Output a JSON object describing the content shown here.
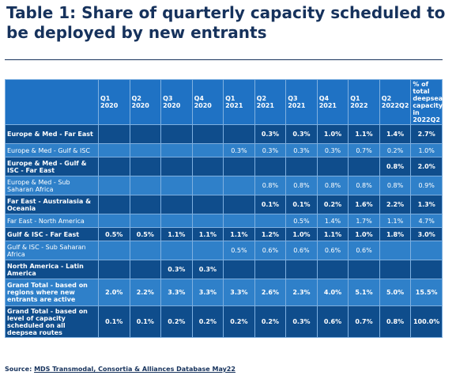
{
  "header": {
    "title": "Table 1: Share of quarterly capacity scheduled to be deployed by new entrants"
  },
  "table": {
    "columns": [
      [
        "Q1",
        "2020"
      ],
      [
        "Q2",
        "2020"
      ],
      [
        "Q3",
        "2020"
      ],
      [
        "Q4",
        "2020"
      ],
      [
        "Q1",
        "2021"
      ],
      [
        "Q2",
        "2021"
      ],
      [
        "Q3",
        "2021"
      ],
      [
        "Q4",
        "2021"
      ],
      [
        "Q1",
        "2022"
      ],
      [
        "Q2",
        "2022Q2"
      ],
      [
        "% of total deepsea capacity in 2022Q2"
      ]
    ],
    "rows": [
      {
        "label": "Europe & Med - Far East",
        "cells": [
          null,
          null,
          null,
          null,
          null,
          "0.3%",
          "0.3%",
          "1.0%",
          "1.1%",
          "1.4%",
          "2.7%"
        ]
      },
      {
        "label": "Europe & Med - Gulf & ISC",
        "cells": [
          null,
          null,
          null,
          null,
          "0.3%",
          "0.3%",
          "0.3%",
          "0.3%",
          "0.7%",
          "0.2%",
          "1.0%"
        ]
      },
      {
        "label": "Europe & Med - Gulf & ISC - Far East",
        "cells": [
          null,
          null,
          null,
          null,
          null,
          null,
          null,
          null,
          null,
          "0.8%",
          "2.0%"
        ]
      },
      {
        "label": "Europe & Med - Sub Saharan Africa",
        "cells": [
          null,
          null,
          null,
          null,
          null,
          "0.8%",
          "0.8%",
          "0.8%",
          "0.8%",
          "0.8%",
          "0.9%"
        ]
      },
      {
        "label": "Far East - Australasia & Oceania",
        "cells": [
          null,
          null,
          null,
          null,
          null,
          "0.1%",
          "0.1%",
          "0.2%",
          "1.6%",
          "2.2%",
          "1.3%"
        ]
      },
      {
        "label": "Far East - North America",
        "cells": [
          null,
          null,
          null,
          null,
          null,
          null,
          "0.5%",
          "1.4%",
          "1.7%",
          "1.1%",
          "4.7%"
        ]
      },
      {
        "label": "Gulf & ISC - Far East",
        "cells": [
          "0.5%",
          "0.5%",
          "1.1%",
          "1.1%",
          "1.1%",
          "1.2%",
          "1.0%",
          "1.1%",
          "1.0%",
          "1.8%",
          "3.0%"
        ]
      },
      {
        "label": "Gulf & ISC - Sub Saharan Africa",
        "cells": [
          null,
          null,
          null,
          null,
          "0.5%",
          "0.6%",
          "0.6%",
          "0.6%",
          "0.6%",
          null,
          null
        ]
      },
      {
        "label": "North America - Latin America",
        "cells": [
          null,
          null,
          "0.3%",
          "0.3%",
          null,
          null,
          null,
          null,
          null,
          null,
          null
        ]
      },
      {
        "label": "Grand Total - based on regions where new entrants are active",
        "cells": [
          "2.0%",
          "2.2%",
          "3.3%",
          "3.3%",
          "3.3%",
          "2.6%",
          "2.3%",
          "4.0%",
          "5.1%",
          "5.0%",
          "15.5%"
        ]
      },
      {
        "label": "Grand Total - based on level of capacity scheduled on all deepsea routes",
        "cells": [
          "0.1%",
          "0.1%",
          "0.2%",
          "0.2%",
          "0.2%",
          "0.2%",
          "0.3%",
          "0.6%",
          "0.7%",
          "0.8%",
          "100.0%"
        ]
      }
    ]
  },
  "source": {
    "label": "Source:",
    "text": "MDS Transmodal, Consortia & Alliances Database May22"
  }
}
